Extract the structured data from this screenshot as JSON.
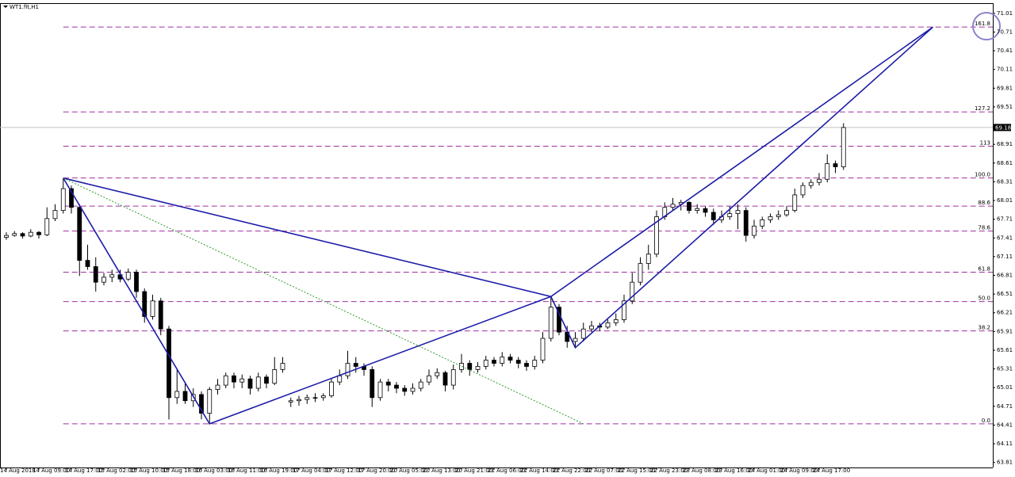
{
  "chart_data": {
    "type": "candlestick",
    "title": "WT1.fit,H1",
    "ylim": [
      63.73,
      71.16
    ],
    "yticks": [
      71.01,
      70.71,
      70.41,
      70.11,
      69.81,
      69.51,
      68.91,
      68.61,
      68.31,
      68.01,
      67.71,
      67.41,
      67.11,
      66.81,
      66.51,
      66.21,
      65.91,
      65.61,
      65.31,
      65.01,
      64.71,
      64.41,
      64.11,
      63.81
    ],
    "categories": [
      "14 Aug 2018",
      null,
      null,
      null,
      "14 Aug 09:00",
      null,
      null,
      null,
      "14 Aug 17:00",
      null,
      null,
      null,
      "15 Aug 02:00",
      null,
      null,
      null,
      "15 Aug 10:00",
      null,
      null,
      null,
      "15 Aug 18:00",
      null,
      null,
      null,
      "16 Aug 03:00",
      null,
      null,
      null,
      "16 Aug 11:00",
      null,
      null,
      null,
      "16 Aug 19:00",
      null,
      null,
      null,
      "17 Aug 04:00",
      null,
      null,
      null,
      "17 Aug 12:00",
      null,
      null,
      null,
      "17 Aug 20:00",
      null,
      null,
      null,
      "20 Aug 05:00",
      null,
      null,
      null,
      "20 Aug 13:00",
      null,
      null,
      null,
      "20 Aug 21:00",
      null,
      null,
      null,
      "21 Aug 06:00",
      null,
      null,
      null,
      "21 Aug 14:00",
      null,
      null,
      null,
      "21 Aug 22:00",
      null,
      null,
      null,
      "22 Aug 07:00",
      null,
      null,
      null,
      "22 Aug 15:00",
      null,
      null,
      null,
      "22 Aug 23:00",
      null,
      null,
      null,
      "23 Aug 08:00",
      null,
      null,
      null,
      "23 Aug 16:00",
      null,
      null,
      null,
      "24 Aug 01:00",
      null,
      null,
      null,
      "24 Aug 09:00",
      null,
      null,
      null,
      "24 Aug 17:00",
      null,
      null,
      null
    ],
    "ohlc": [
      [
        67.42,
        67.5,
        67.38,
        67.45
      ],
      [
        67.45,
        67.52,
        67.43,
        67.48
      ],
      [
        67.48,
        67.5,
        67.4,
        67.44
      ],
      [
        67.44,
        67.55,
        67.42,
        67.5
      ],
      [
        67.5,
        67.52,
        67.4,
        67.46
      ],
      [
        67.46,
        67.9,
        67.44,
        67.72
      ],
      [
        67.72,
        67.95,
        67.68,
        67.85
      ],
      [
        67.85,
        68.37,
        67.8,
        68.2
      ],
      [
        68.2,
        68.25,
        67.8,
        67.9
      ],
      [
        67.9,
        67.95,
        66.8,
        67.05
      ],
      [
        67.05,
        67.3,
        66.9,
        66.95
      ],
      [
        66.95,
        67.1,
        66.55,
        66.7
      ],
      [
        66.7,
        66.85,
        66.65,
        66.78
      ],
      [
        66.78,
        66.9,
        66.7,
        66.82
      ],
      [
        66.82,
        66.9,
        66.7,
        66.75
      ],
      [
        66.75,
        66.92,
        66.72,
        66.86
      ],
      [
        66.86,
        66.9,
        66.45,
        66.55
      ],
      [
        66.55,
        66.6,
        66.05,
        66.15
      ],
      [
        66.15,
        66.5,
        66.1,
        66.4
      ],
      [
        66.4,
        66.45,
        65.85,
        65.95
      ],
      [
        65.95,
        66.0,
        64.5,
        64.85
      ],
      [
        64.85,
        65.3,
        64.75,
        64.95
      ],
      [
        64.95,
        65.1,
        64.75,
        64.8
      ],
      [
        64.8,
        65.0,
        64.7,
        64.9
      ],
      [
        64.9,
        64.95,
        64.5,
        64.6
      ],
      [
        64.6,
        65.02,
        64.43,
        64.98
      ],
      [
        64.98,
        65.15,
        64.9,
        65.05
      ],
      [
        65.05,
        65.25,
        65.0,
        65.2
      ],
      [
        65.2,
        65.25,
        65.0,
        65.1
      ],
      [
        65.1,
        65.22,
        65.0,
        65.15
      ],
      [
        65.15,
        65.2,
        64.9,
        65.0
      ],
      [
        65.0,
        65.25,
        64.95,
        65.18
      ],
      [
        65.18,
        65.22,
        65.0,
        65.08
      ],
      [
        65.08,
        65.5,
        65.05,
        65.3
      ],
      [
        65.3,
        65.5,
        65.25,
        65.4
      ],
      [
        64.78,
        64.85,
        64.7,
        64.8
      ],
      [
        64.8,
        64.88,
        64.72,
        64.82
      ],
      [
        64.82,
        64.9,
        64.75,
        64.85
      ],
      [
        64.85,
        64.92,
        64.78,
        64.85
      ],
      [
        64.85,
        64.92,
        64.8,
        64.88
      ],
      [
        64.88,
        65.15,
        64.85,
        65.1
      ],
      [
        65.1,
        65.3,
        65.05,
        65.2
      ],
      [
        65.2,
        65.6,
        65.15,
        65.4
      ],
      [
        65.4,
        65.5,
        65.25,
        65.35
      ],
      [
        65.35,
        65.4,
        65.2,
        65.3
      ],
      [
        65.3,
        65.35,
        64.7,
        64.85
      ],
      [
        64.85,
        65.15,
        64.8,
        65.1
      ],
      [
        65.1,
        65.15,
        64.95,
        65.05
      ],
      [
        65.05,
        65.1,
        64.92,
        65.0
      ],
      [
        65.0,
        65.05,
        64.88,
        64.95
      ],
      [
        64.95,
        65.08,
        64.9,
        65.0
      ],
      [
        65.0,
        65.15,
        64.95,
        65.1
      ],
      [
        65.1,
        65.3,
        65.05,
        65.2
      ],
      [
        65.2,
        65.32,
        65.15,
        65.25
      ],
      [
        65.25,
        65.28,
        64.95,
        65.05
      ],
      [
        65.05,
        65.38,
        64.98,
        65.3
      ],
      [
        65.3,
        65.55,
        65.25,
        65.4
      ],
      [
        65.4,
        65.45,
        65.2,
        65.3
      ],
      [
        65.3,
        65.42,
        65.25,
        65.35
      ],
      [
        65.35,
        65.52,
        65.3,
        65.45
      ],
      [
        65.45,
        65.5,
        65.35,
        65.4
      ],
      [
        65.4,
        65.58,
        65.35,
        65.5
      ],
      [
        65.5,
        65.55,
        65.4,
        65.45
      ],
      [
        65.45,
        65.5,
        65.32,
        65.4
      ],
      [
        65.4,
        65.45,
        65.28,
        65.35
      ],
      [
        65.35,
        65.52,
        65.3,
        65.45
      ],
      [
        65.45,
        65.9,
        65.4,
        65.8
      ],
      [
        65.8,
        66.47,
        65.75,
        66.3
      ],
      [
        66.3,
        66.35,
        65.85,
        65.9
      ],
      [
        65.9,
        66.0,
        65.65,
        65.75
      ],
      [
        65.75,
        65.9,
        65.65,
        65.8
      ],
      [
        65.8,
        66.05,
        65.75,
        65.95
      ],
      [
        65.95,
        66.08,
        65.9,
        66.0
      ],
      [
        66.0,
        66.05,
        65.92,
        65.98
      ],
      [
        65.98,
        66.1,
        65.95,
        66.05
      ],
      [
        66.05,
        66.2,
        66.0,
        66.1
      ],
      [
        66.1,
        66.5,
        66.05,
        66.4
      ],
      [
        66.4,
        66.85,
        66.35,
        66.7
      ],
      [
        66.7,
        67.1,
        66.65,
        67.0
      ],
      [
        67.0,
        67.3,
        66.9,
        67.15
      ],
      [
        67.15,
        67.85,
        67.1,
        67.75
      ],
      [
        67.75,
        67.98,
        67.7,
        67.9
      ],
      [
        67.9,
        68.05,
        67.85,
        67.95
      ],
      [
        67.95,
        68.02,
        67.85,
        67.98
      ],
      [
        67.98,
        68.0,
        67.8,
        67.85
      ],
      [
        67.85,
        67.95,
        67.8,
        67.88
      ],
      [
        67.88,
        67.92,
        67.75,
        67.82
      ],
      [
        67.82,
        67.88,
        67.62,
        67.7
      ],
      [
        67.7,
        67.85,
        67.65,
        67.75
      ],
      [
        67.75,
        67.92,
        67.7,
        67.8
      ],
      [
        67.8,
        67.95,
        67.55,
        67.85
      ],
      [
        67.85,
        67.9,
        67.35,
        67.45
      ],
      [
        67.45,
        67.7,
        67.4,
        67.6
      ],
      [
        67.6,
        67.75,
        67.55,
        67.7
      ],
      [
        67.7,
        67.8,
        67.65,
        67.75
      ],
      [
        67.75,
        67.85,
        67.7,
        67.78
      ],
      [
        67.78,
        67.92,
        67.75,
        67.85
      ],
      [
        67.85,
        68.2,
        67.82,
        68.1
      ],
      [
        68.1,
        68.3,
        68.05,
        68.25
      ],
      [
        68.25,
        68.35,
        68.2,
        68.3
      ],
      [
        68.3,
        68.45,
        68.25,
        68.35
      ],
      [
        68.35,
        68.75,
        68.3,
        68.6
      ],
      [
        68.6,
        68.65,
        68.45,
        68.55
      ],
      [
        68.55,
        69.25,
        68.5,
        69.18
      ]
    ],
    "last_price": 69.18,
    "levels_color": "#a030a0",
    "levels": [
      {
        "label": "161.8",
        "value": 70.79
      },
      {
        "label": "127.2",
        "value": 69.43
      },
      {
        "label": "113",
        "value": 68.88
      },
      {
        "label": "100.0",
        "value": 68.37
      },
      {
        "label": "88.6",
        "value": 67.92
      },
      {
        "label": "78.6",
        "value": 67.52
      },
      {
        "label": "61.8",
        "value": 66.86
      },
      {
        "label": "50.0",
        "value": 66.39
      },
      {
        "label": "38.2",
        "value": 65.92
      },
      {
        "label": "0.0",
        "value": 64.43
      }
    ],
    "drawings": [
      {
        "color": "#1c1ca8",
        "style": "solid",
        "x": [
          7,
          25,
          67,
          70,
          114
        ],
        "values": [
          68.37,
          64.43,
          66.47,
          65.65,
          70.79
        ]
      },
      {
        "color": "#1c1ca8",
        "style": "solid",
        "x": [
          7,
          67,
          114
        ],
        "values": [
          68.37,
          66.47,
          70.79
        ]
      },
      {
        "color": "#2e9a2e",
        "style": "dotted",
        "x": [
          7,
          71
        ],
        "values": [
          68.37,
          64.43
        ]
      }
    ]
  }
}
